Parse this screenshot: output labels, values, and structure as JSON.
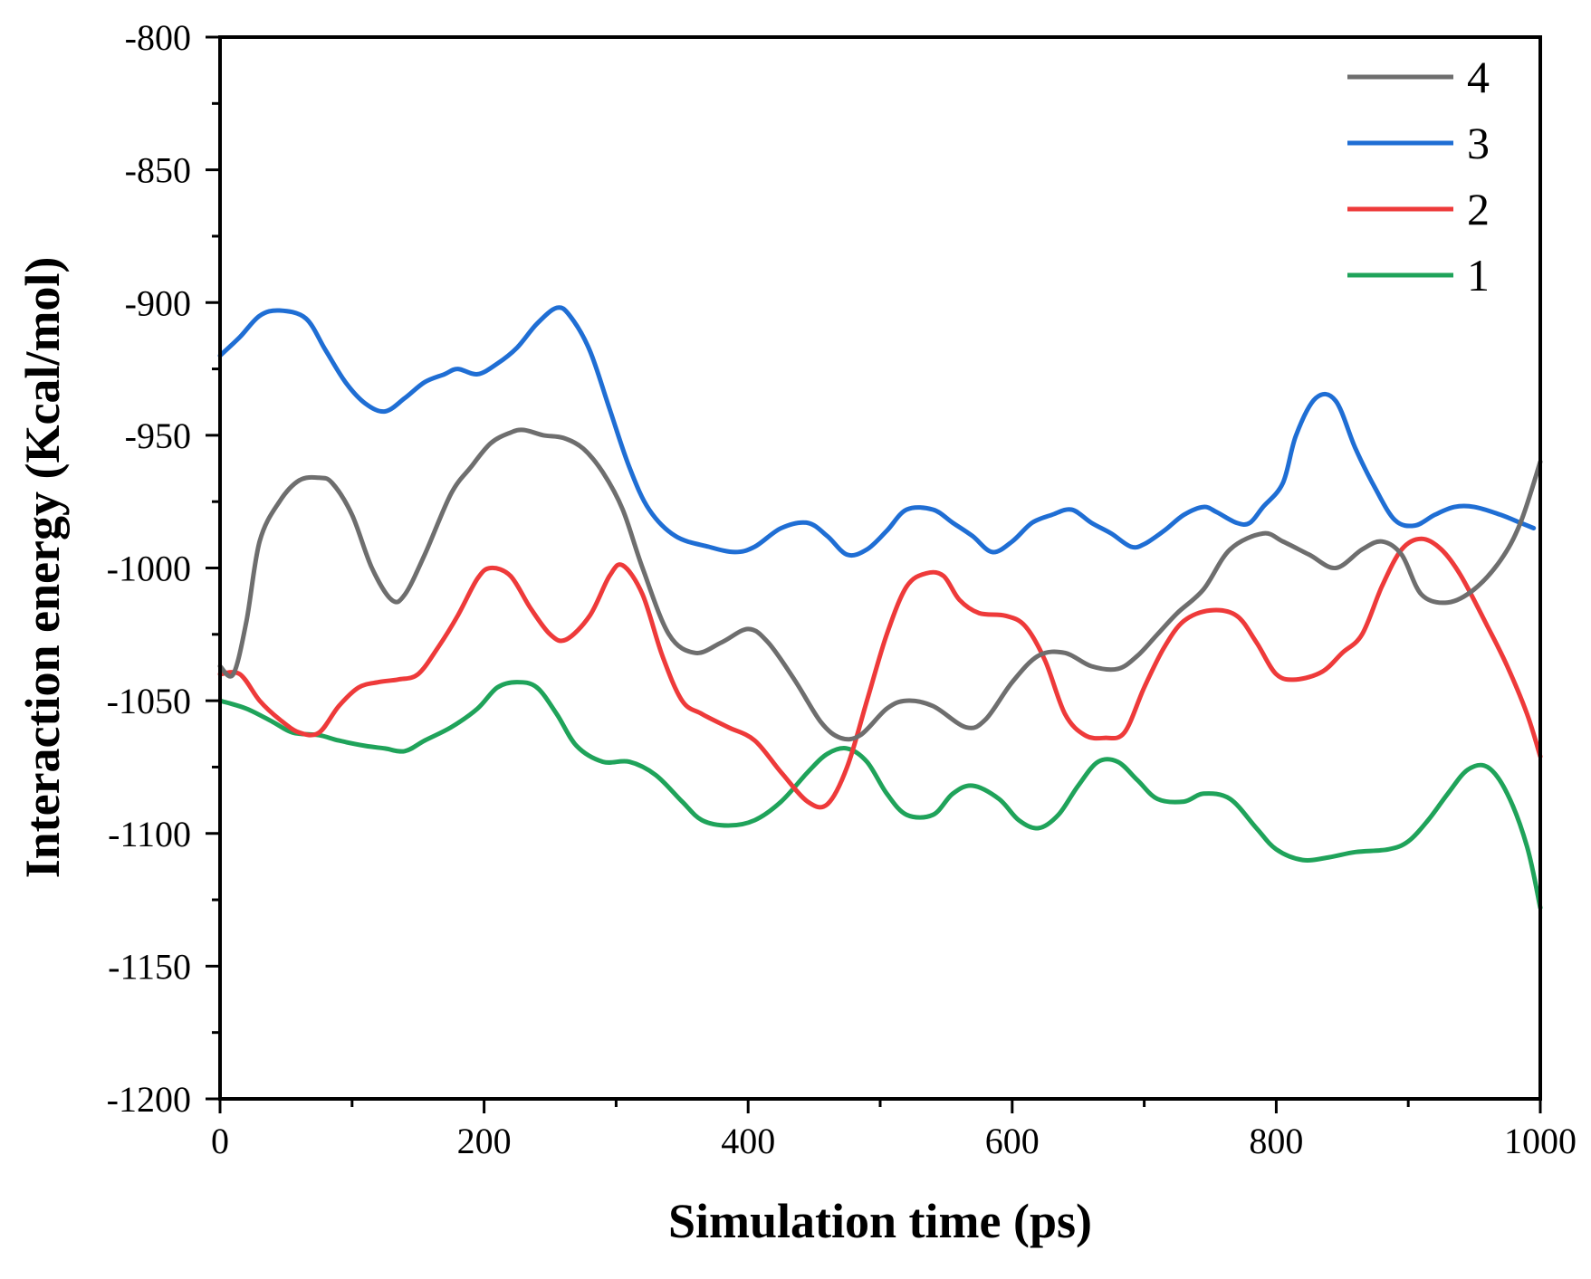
{
  "chart_data": {
    "type": "line",
    "title": "",
    "xlabel": "Simulation time (ps)",
    "ylabel": "Interaction energy (Kcal/mol)",
    "xlim": [
      0,
      1000
    ],
    "ylim": [
      -1200,
      -800
    ],
    "xticks": [
      0,
      200,
      400,
      600,
      800,
      1000
    ],
    "xtick_labels": [
      "0",
      "200",
      "400",
      "600",
      "800",
      "1000"
    ],
    "yticks": [
      -800,
      -850,
      -900,
      -950,
      -1000,
      -1050,
      -1100,
      -1150,
      -1200
    ],
    "ytick_labels": [
      "-800",
      "-850",
      "-900",
      "-950",
      "-1000",
      "-1050",
      "-1100",
      "-1150",
      "-1200"
    ],
    "grid": false,
    "legend_position": "top-right",
    "series": [
      {
        "name": "4",
        "color": "#6e6e6e",
        "points": [
          [
            0,
            -1037
          ],
          [
            10,
            -1040
          ],
          [
            20,
            -1020
          ],
          [
            30,
            -990
          ],
          [
            45,
            -975
          ],
          [
            60,
            -967
          ],
          [
            75,
            -966
          ],
          [
            85,
            -968
          ],
          [
            100,
            -980
          ],
          [
            115,
            -1000
          ],
          [
            130,
            -1012
          ],
          [
            140,
            -1010
          ],
          [
            155,
            -995
          ],
          [
            175,
            -972
          ],
          [
            190,
            -962
          ],
          [
            205,
            -953
          ],
          [
            220,
            -949
          ],
          [
            230,
            -948
          ],
          [
            245,
            -950
          ],
          [
            260,
            -951
          ],
          [
            275,
            -955
          ],
          [
            290,
            -964
          ],
          [
            305,
            -978
          ],
          [
            320,
            -1000
          ],
          [
            340,
            -1025
          ],
          [
            360,
            -1032
          ],
          [
            380,
            -1028
          ],
          [
            400,
            -1023
          ],
          [
            415,
            -1028
          ],
          [
            435,
            -1042
          ],
          [
            455,
            -1058
          ],
          [
            470,
            -1064
          ],
          [
            485,
            -1063
          ],
          [
            505,
            -1053
          ],
          [
            520,
            -1050
          ],
          [
            540,
            -1052
          ],
          [
            565,
            -1060
          ],
          [
            580,
            -1057
          ],
          [
            600,
            -1043
          ],
          [
            620,
            -1033
          ],
          [
            640,
            -1032
          ],
          [
            660,
            -1037
          ],
          [
            680,
            -1038
          ],
          [
            695,
            -1033
          ],
          [
            710,
            -1025
          ],
          [
            725,
            -1017
          ],
          [
            745,
            -1008
          ],
          [
            765,
            -993
          ],
          [
            790,
            -987
          ],
          [
            805,
            -990
          ],
          [
            825,
            -995
          ],
          [
            845,
            -1000
          ],
          [
            865,
            -993
          ],
          [
            880,
            -990
          ],
          [
            895,
            -995
          ],
          [
            910,
            -1010
          ],
          [
            930,
            -1013
          ],
          [
            950,
            -1008
          ],
          [
            970,
            -997
          ],
          [
            985,
            -983
          ],
          [
            1000,
            -960
          ]
        ]
      },
      {
        "name": "3",
        "color": "#1f6ed4",
        "points": [
          [
            0,
            -920
          ],
          [
            15,
            -913
          ],
          [
            30,
            -905
          ],
          [
            45,
            -903
          ],
          [
            65,
            -906
          ],
          [
            80,
            -918
          ],
          [
            95,
            -930
          ],
          [
            110,
            -938
          ],
          [
            125,
            -941
          ],
          [
            140,
            -936
          ],
          [
            155,
            -930
          ],
          [
            170,
            -927
          ],
          [
            180,
            -925
          ],
          [
            195,
            -927
          ],
          [
            210,
            -923
          ],
          [
            225,
            -917
          ],
          [
            240,
            -908
          ],
          [
            255,
            -902
          ],
          [
            265,
            -905
          ],
          [
            280,
            -918
          ],
          [
            295,
            -940
          ],
          [
            310,
            -962
          ],
          [
            325,
            -978
          ],
          [
            345,
            -988
          ],
          [
            370,
            -992
          ],
          [
            390,
            -994
          ],
          [
            405,
            -992
          ],
          [
            425,
            -985
          ],
          [
            445,
            -983
          ],
          [
            460,
            -988
          ],
          [
            475,
            -995
          ],
          [
            490,
            -993
          ],
          [
            505,
            -986
          ],
          [
            520,
            -978
          ],
          [
            540,
            -978
          ],
          [
            555,
            -983
          ],
          [
            570,
            -988
          ],
          [
            585,
            -994
          ],
          [
            600,
            -990
          ],
          [
            615,
            -983
          ],
          [
            630,
            -980
          ],
          [
            645,
            -978
          ],
          [
            660,
            -983
          ],
          [
            675,
            -987
          ],
          [
            690,
            -992
          ],
          [
            700,
            -991
          ],
          [
            715,
            -986
          ],
          [
            730,
            -980
          ],
          [
            745,
            -977
          ],
          [
            755,
            -979
          ],
          [
            770,
            -983
          ],
          [
            780,
            -983
          ],
          [
            790,
            -977
          ],
          [
            805,
            -968
          ],
          [
            815,
            -950
          ],
          [
            830,
            -936
          ],
          [
            845,
            -937
          ],
          [
            860,
            -955
          ],
          [
            875,
            -970
          ],
          [
            890,
            -982
          ],
          [
            905,
            -984
          ],
          [
            920,
            -980
          ],
          [
            935,
            -977
          ],
          [
            950,
            -977
          ],
          [
            970,
            -980
          ],
          [
            985,
            -983
          ],
          [
            995,
            -985
          ]
        ]
      },
      {
        "name": "2",
        "color": "#ee3a3a",
        "points": [
          [
            0,
            -1040
          ],
          [
            15,
            -1040
          ],
          [
            30,
            -1050
          ],
          [
            45,
            -1057
          ],
          [
            60,
            -1062
          ],
          [
            75,
            -1062
          ],
          [
            90,
            -1052
          ],
          [
            105,
            -1045
          ],
          [
            120,
            -1043
          ],
          [
            135,
            -1042
          ],
          [
            150,
            -1040
          ],
          [
            165,
            -1030
          ],
          [
            180,
            -1018
          ],
          [
            195,
            -1004
          ],
          [
            205,
            -1000
          ],
          [
            220,
            -1003
          ],
          [
            235,
            -1015
          ],
          [
            250,
            -1025
          ],
          [
            262,
            -1027
          ],
          [
            280,
            -1018
          ],
          [
            295,
            -1003
          ],
          [
            305,
            -999
          ],
          [
            320,
            -1010
          ],
          [
            335,
            -1033
          ],
          [
            350,
            -1050
          ],
          [
            365,
            -1055
          ],
          [
            385,
            -1060
          ],
          [
            405,
            -1065
          ],
          [
            425,
            -1077
          ],
          [
            445,
            -1088
          ],
          [
            460,
            -1089
          ],
          [
            475,
            -1075
          ],
          [
            490,
            -1050
          ],
          [
            505,
            -1025
          ],
          [
            520,
            -1007
          ],
          [
            535,
            -1002
          ],
          [
            548,
            -1003
          ],
          [
            560,
            -1012
          ],
          [
            575,
            -1017
          ],
          [
            595,
            -1018
          ],
          [
            610,
            -1022
          ],
          [
            625,
            -1035
          ],
          [
            640,
            -1055
          ],
          [
            655,
            -1063
          ],
          [
            670,
            -1064
          ],
          [
            685,
            -1062
          ],
          [
            700,
            -1045
          ],
          [
            715,
            -1030
          ],
          [
            730,
            -1020
          ],
          [
            750,
            -1016
          ],
          [
            770,
            -1018
          ],
          [
            785,
            -1028
          ],
          [
            800,
            -1040
          ],
          [
            815,
            -1042
          ],
          [
            835,
            -1039
          ],
          [
            850,
            -1032
          ],
          [
            865,
            -1025
          ],
          [
            880,
            -1007
          ],
          [
            895,
            -993
          ],
          [
            910,
            -989
          ],
          [
            925,
            -993
          ],
          [
            940,
            -1003
          ],
          [
            960,
            -1022
          ],
          [
            975,
            -1037
          ],
          [
            990,
            -1055
          ],
          [
            1000,
            -1071
          ]
        ]
      },
      {
        "name": "1",
        "color": "#1fa35a",
        "points": [
          [
            0,
            -1050
          ],
          [
            20,
            -1053
          ],
          [
            40,
            -1058
          ],
          [
            55,
            -1062
          ],
          [
            75,
            -1063
          ],
          [
            90,
            -1065
          ],
          [
            110,
            -1067
          ],
          [
            125,
            -1068
          ],
          [
            140,
            -1069
          ],
          [
            155,
            -1065
          ],
          [
            175,
            -1060
          ],
          [
            195,
            -1053
          ],
          [
            210,
            -1045
          ],
          [
            225,
            -1043
          ],
          [
            240,
            -1045
          ],
          [
            255,
            -1055
          ],
          [
            270,
            -1067
          ],
          [
            290,
            -1073
          ],
          [
            310,
            -1073
          ],
          [
            330,
            -1078
          ],
          [
            350,
            -1088
          ],
          [
            365,
            -1095
          ],
          [
            385,
            -1097
          ],
          [
            405,
            -1095
          ],
          [
            425,
            -1088
          ],
          [
            445,
            -1077
          ],
          [
            460,
            -1070
          ],
          [
            475,
            -1068
          ],
          [
            490,
            -1073
          ],
          [
            505,
            -1085
          ],
          [
            520,
            -1093
          ],
          [
            540,
            -1093
          ],
          [
            555,
            -1085
          ],
          [
            570,
            -1082
          ],
          [
            590,
            -1087
          ],
          [
            605,
            -1095
          ],
          [
            620,
            -1098
          ],
          [
            635,
            -1093
          ],
          [
            650,
            -1082
          ],
          [
            665,
            -1073
          ],
          [
            680,
            -1073
          ],
          [
            695,
            -1080
          ],
          [
            710,
            -1087
          ],
          [
            730,
            -1088
          ],
          [
            745,
            -1085
          ],
          [
            765,
            -1087
          ],
          [
            785,
            -1098
          ],
          [
            800,
            -1106
          ],
          [
            820,
            -1110
          ],
          [
            840,
            -1109
          ],
          [
            860,
            -1107
          ],
          [
            885,
            -1106
          ],
          [
            900,
            -1103
          ],
          [
            915,
            -1095
          ],
          [
            930,
            -1085
          ],
          [
            945,
            -1076
          ],
          [
            960,
            -1075
          ],
          [
            975,
            -1085
          ],
          [
            990,
            -1105
          ],
          [
            1000,
            -1128
          ]
        ]
      }
    ]
  }
}
